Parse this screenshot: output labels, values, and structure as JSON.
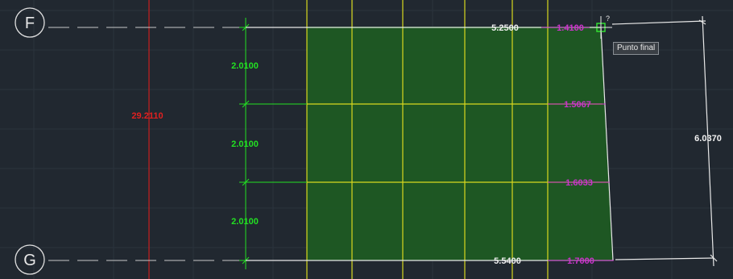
{
  "grid_bubbles": {
    "top": "F",
    "bottom": "G"
  },
  "dimensions": {
    "overall_red": "29.2110",
    "spacing_1": "2.0100",
    "spacing_2": "2.0100",
    "spacing_3": "2.0100",
    "top_width": "5.2500",
    "bottom_width": "5.5400",
    "right_height": "6.0370",
    "magenta_top": "1.4100",
    "magenta_2": "1.5067",
    "magenta_3": "1.6033",
    "magenta_bottom": "1.7000"
  },
  "cursor_marker": "?",
  "tooltip": "Punto final",
  "colors": {
    "background": "#212830",
    "hatch_fill": "#1f5a23",
    "green_dim": "#22e022",
    "yellow_line": "#d8d81e",
    "red_line": "#c81e1e",
    "magenta_dim": "#cc33cc",
    "white_line": "#e8e8e8"
  }
}
